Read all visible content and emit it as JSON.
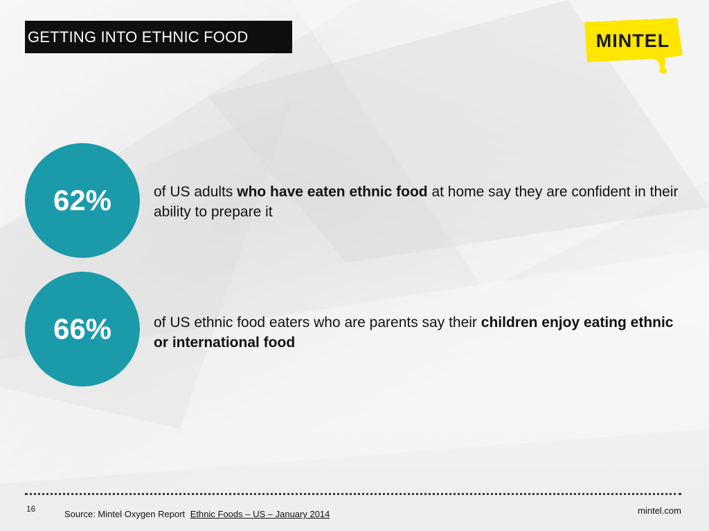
{
  "slide": {
    "title": "GETTING INTO ETHNIC FOOD",
    "logo_text": "MINTEL",
    "stats": [
      {
        "value": "62%",
        "text_parts": [
          "of US adults ",
          "who have eaten ethnic food",
          " at home say they are confident in their ability to prepare it"
        ]
      },
      {
        "value": "66%",
        "text_parts": [
          "of US ethnic food eaters who are parents say their ",
          "children enjoy eating ethnic or international food"
        ]
      }
    ],
    "footer": {
      "page_number": "16",
      "source_prefix": "Source: Mintel Oxygen Report",
      "source_link": "Ethnic Foods – US – January 2014",
      "site": "mintel.com"
    }
  },
  "colors": {
    "accent_teal": "#1b9aaa",
    "logo_yellow": "#ffe600",
    "title_bg": "#0f0f0f"
  }
}
